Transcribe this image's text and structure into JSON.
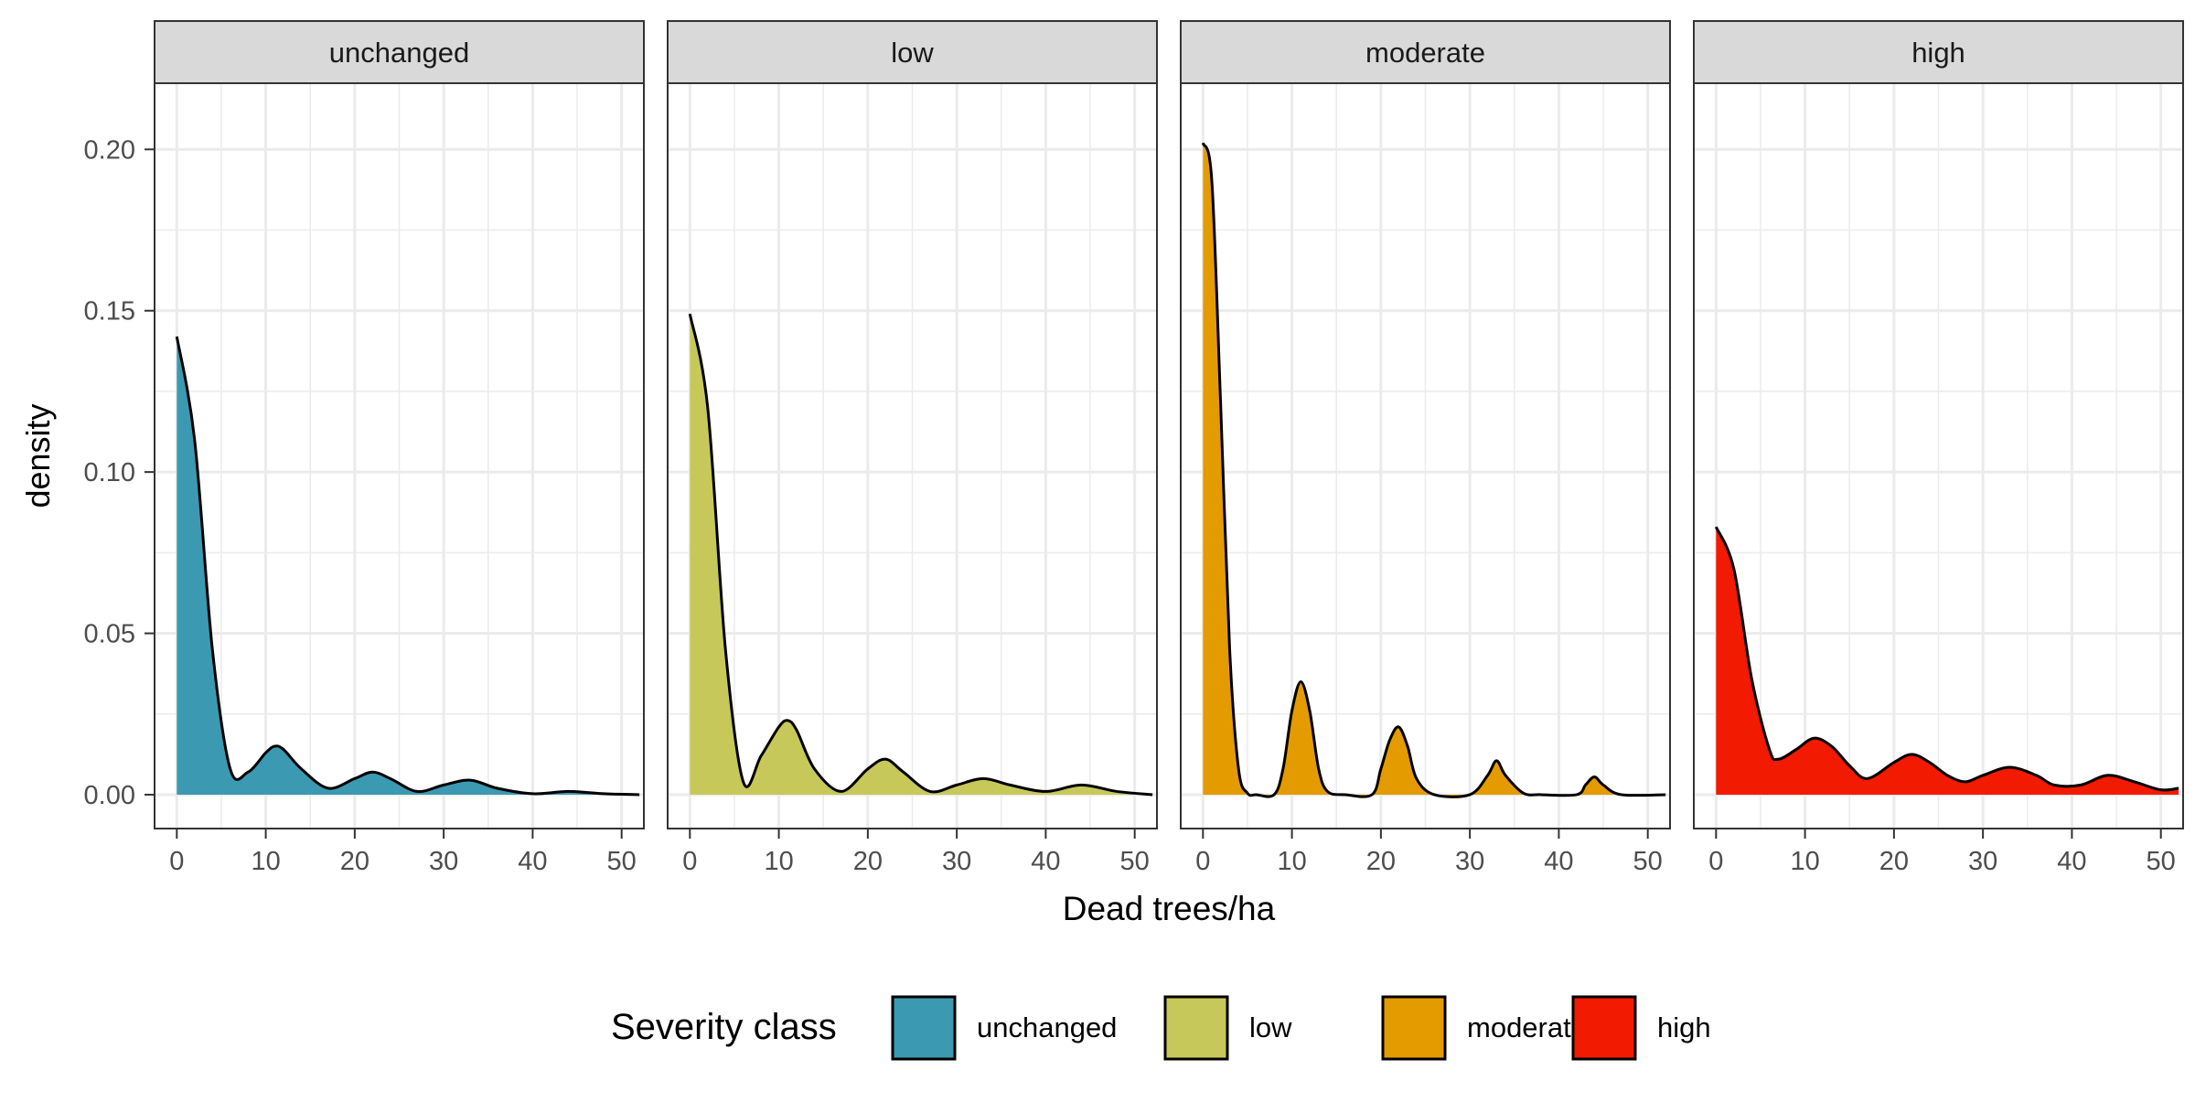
{
  "chart_data": {
    "type": "area",
    "facet_by": "Severity class",
    "xlabel": "Dead trees/ha",
    "ylabel": "density",
    "xlim": [
      -2.5,
      52.5
    ],
    "ylim": [
      -0.0105,
      0.2205
    ],
    "x_ticks": [
      0,
      10,
      20,
      30,
      40,
      50
    ],
    "x_tick_labels": [
      "0",
      "10",
      "20",
      "30",
      "40",
      "50"
    ],
    "y_ticks": [
      0.0,
      0.05,
      0.1,
      0.15,
      0.2
    ],
    "y_tick_labels": [
      "0.00",
      "0.05",
      "0.10",
      "0.15",
      "0.20"
    ],
    "grid": true,
    "legend": {
      "title": "Severity class",
      "position": "bottom",
      "entries": [
        "unchanged",
        "low",
        "moderate",
        "high"
      ]
    },
    "panels": [
      {
        "strip": "unchanged",
        "color": "#3b9ab2",
        "x": [
          0,
          2,
          4,
          6,
          8,
          10,
          11,
          12,
          14,
          17,
          20,
          22,
          24,
          27,
          30,
          33,
          36,
          40,
          44,
          48,
          52
        ],
        "y": [
          0.142,
          0.11,
          0.045,
          0.008,
          0.007,
          0.013,
          0.015,
          0.014,
          0.008,
          0.002,
          0.005,
          0.007,
          0.005,
          0.001,
          0.003,
          0.0045,
          0.002,
          0.0003,
          0.001,
          0.0003,
          0.0
        ]
      },
      {
        "strip": "low",
        "color": "#c7c85a",
        "x": [
          0,
          2,
          4,
          6,
          8,
          10,
          11,
          12,
          14,
          17,
          20,
          22,
          24,
          27,
          30,
          33,
          36,
          40,
          44,
          48,
          52
        ],
        "y": [
          0.149,
          0.12,
          0.045,
          0.004,
          0.012,
          0.021,
          0.023,
          0.02,
          0.008,
          0.001,
          0.008,
          0.011,
          0.007,
          0.001,
          0.003,
          0.005,
          0.003,
          0.001,
          0.003,
          0.001,
          0.0
        ]
      },
      {
        "strip": "moderate",
        "color": "#e39b00",
        "x": [
          0,
          1,
          2,
          3,
          4,
          5,
          6,
          8,
          9,
          10,
          11,
          12,
          13,
          14,
          16,
          19,
          20,
          21,
          22,
          23,
          24,
          26,
          30,
          32,
          33,
          34,
          36,
          38,
          42,
          43,
          44,
          45,
          47,
          52
        ],
        "y": [
          0.202,
          0.19,
          0.12,
          0.045,
          0.008,
          0.0005,
          0.0,
          0.0,
          0.008,
          0.026,
          0.035,
          0.026,
          0.008,
          0.001,
          0.0,
          0.0,
          0.008,
          0.017,
          0.021,
          0.015,
          0.005,
          0.0,
          0.0,
          0.006,
          0.0105,
          0.006,
          0.0005,
          0.0,
          0.0,
          0.003,
          0.0055,
          0.003,
          0.0,
          0.0
        ]
      },
      {
        "strip": "high",
        "color": "#f21a00",
        "x": [
          0,
          2,
          4,
          6,
          7,
          9,
          11,
          13,
          15,
          17,
          20,
          22,
          24,
          26,
          28,
          30,
          33,
          36,
          38,
          41,
          44,
          47,
          50,
          52
        ],
        "y": [
          0.083,
          0.07,
          0.036,
          0.014,
          0.011,
          0.014,
          0.0175,
          0.015,
          0.009,
          0.005,
          0.01,
          0.0125,
          0.01,
          0.006,
          0.004,
          0.006,
          0.0085,
          0.006,
          0.003,
          0.003,
          0.006,
          0.004,
          0.0015,
          0.002
        ]
      }
    ]
  }
}
